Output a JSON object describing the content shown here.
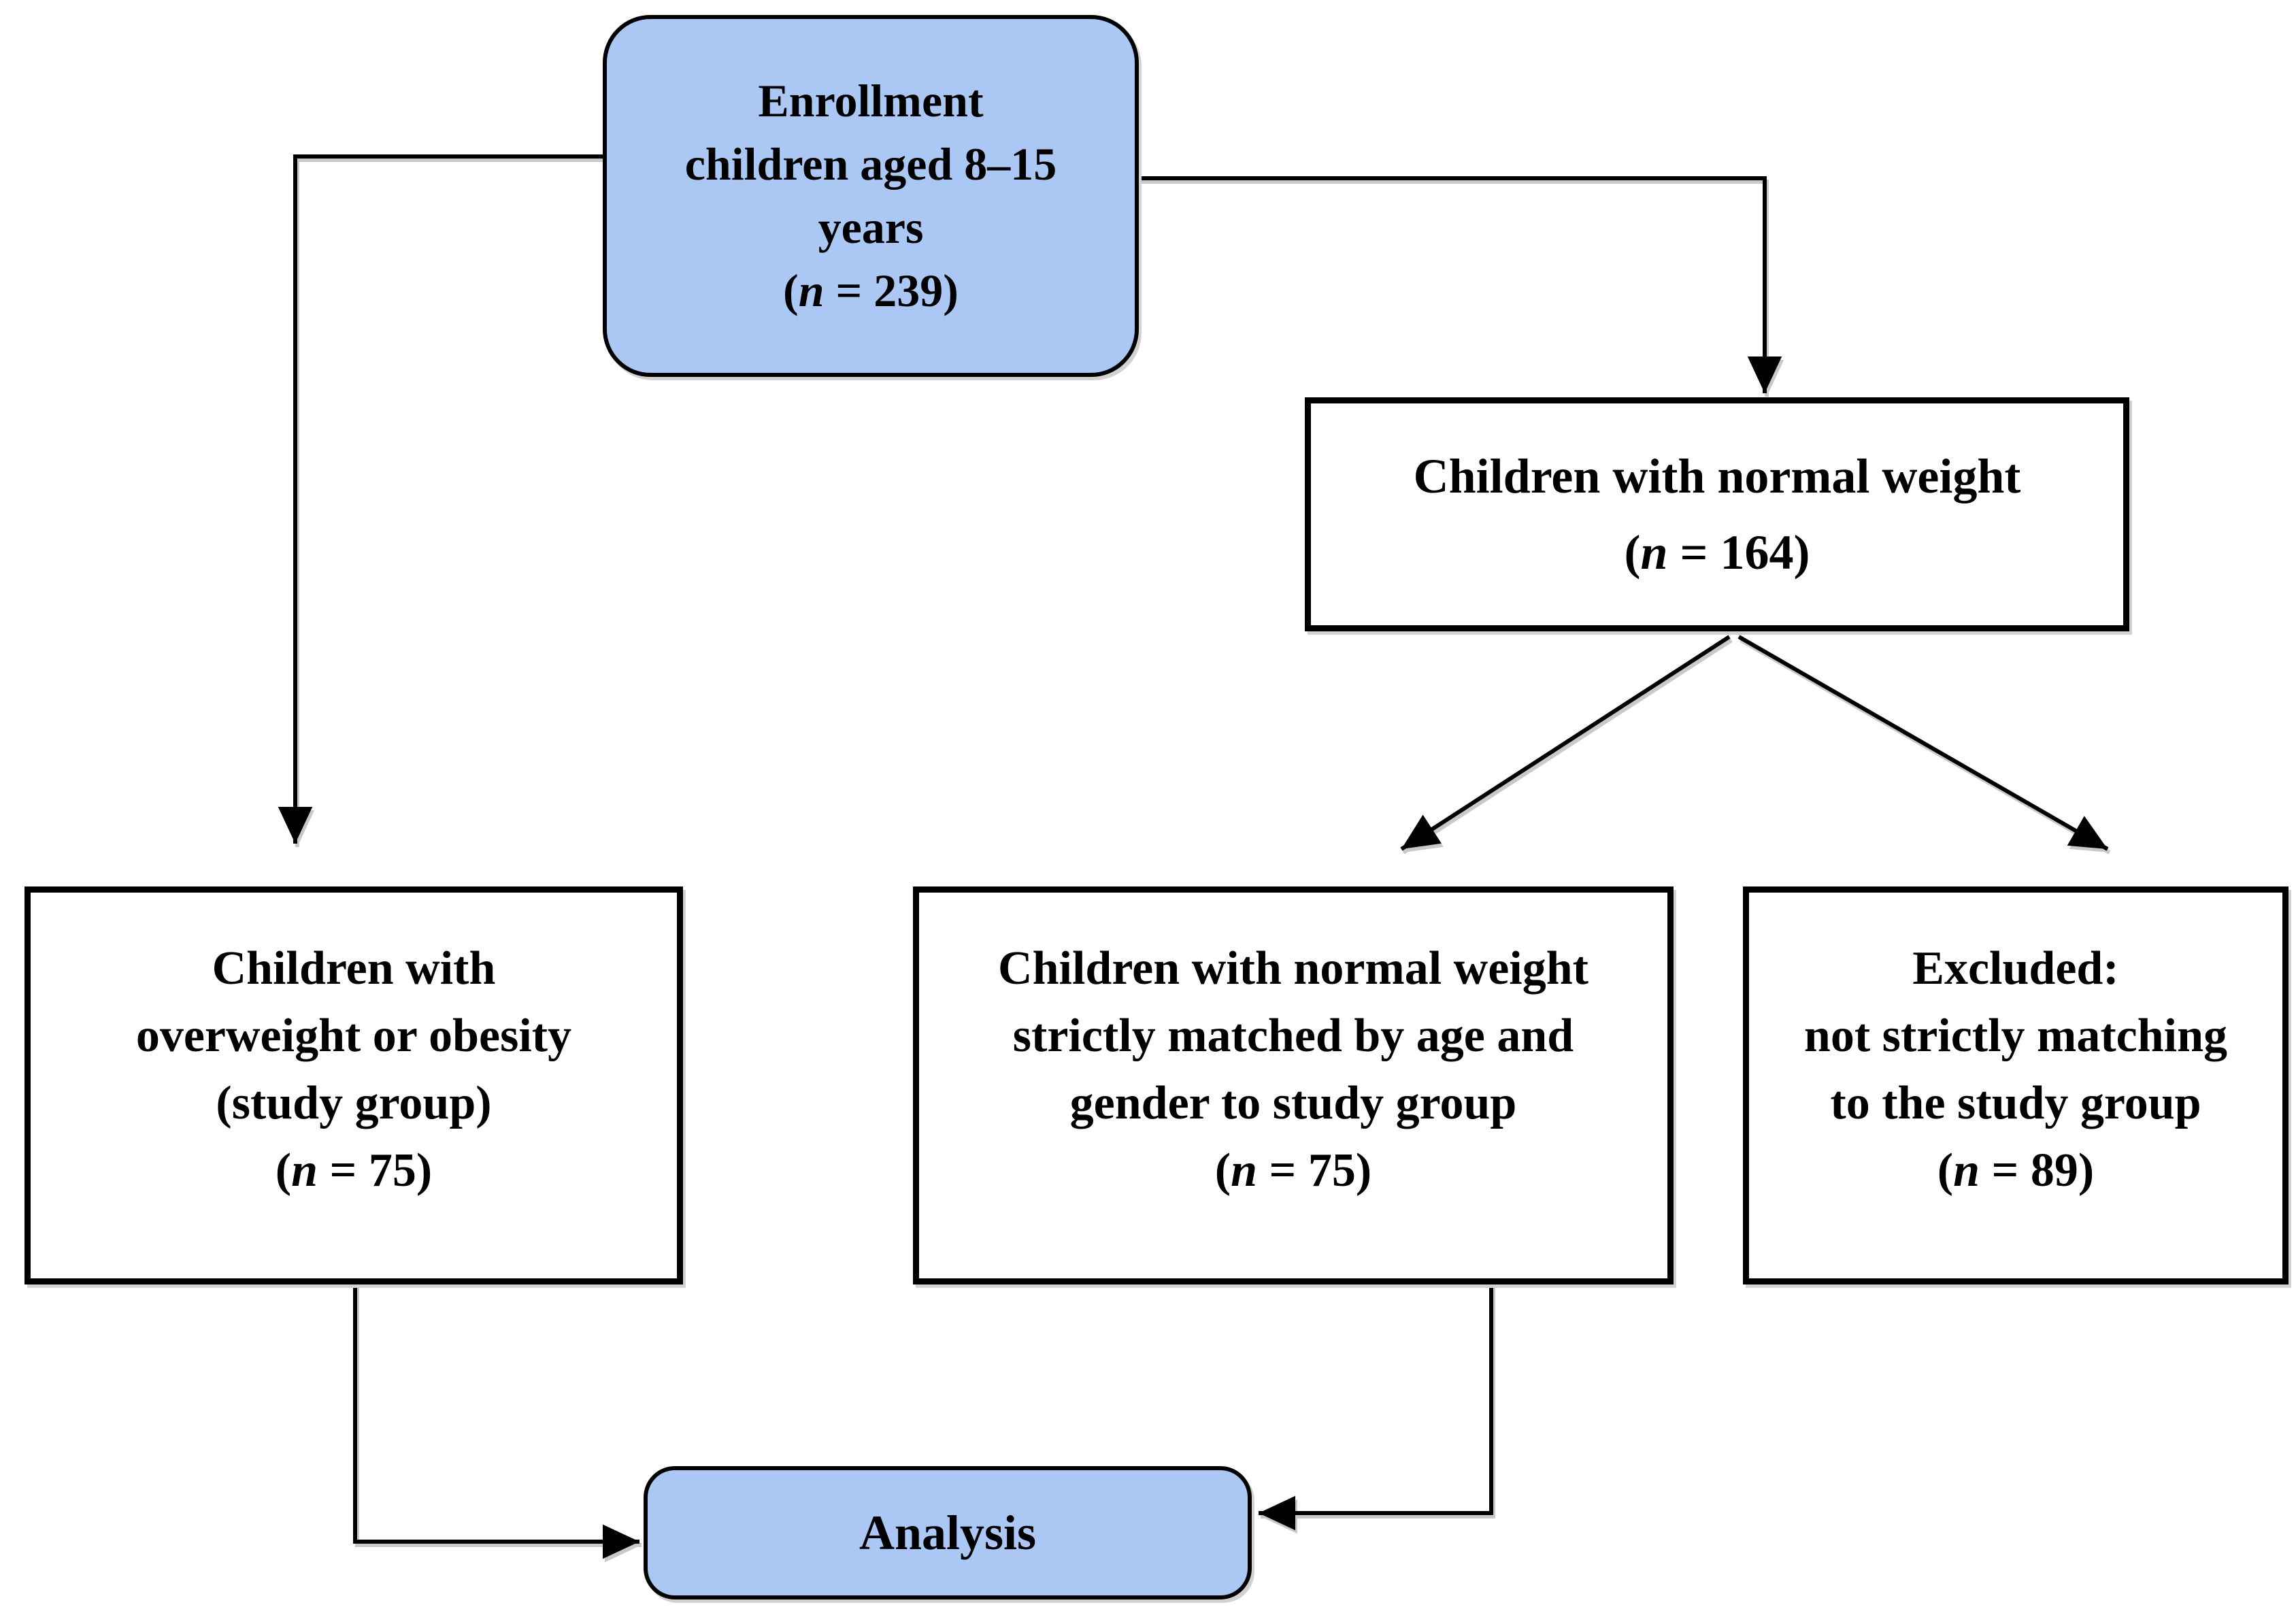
{
  "figure": {
    "type": "flowchart",
    "background": "#ffffff"
  },
  "colors": {
    "terminal_node_fill": "#abc8f4",
    "process_node_fill": "#ffffff",
    "border": "#000000",
    "arrow": "#000000"
  },
  "nodes": {
    "enrollment": {
      "shape": "rounded",
      "lines": [
        "Enrollment",
        "children aged 8–15",
        "years",
        "(n = 239)"
      ]
    },
    "normal_weight": {
      "shape": "rect",
      "lines": [
        "Children with normal weight",
        "(n = 164)"
      ]
    },
    "study_group": {
      "shape": "rect",
      "lines": [
        "Children with",
        "overweight or obesity",
        "(study group)",
        "(n = 75)"
      ]
    },
    "matched_controls": {
      "shape": "rect",
      "lines": [
        "Children with normal weight",
        "strictly matched by age and",
        "gender to study group",
        "(n = 75)"
      ]
    },
    "excluded": {
      "shape": "rect",
      "lines": [
        "Excluded:",
        "not strictly matching",
        "to the study group",
        "(n = 89)"
      ]
    },
    "analysis": {
      "shape": "rounded",
      "lines": [
        "Analysis"
      ]
    }
  },
  "edges": [
    {
      "from": "enrollment",
      "to": "study_group"
    },
    {
      "from": "enrollment",
      "to": "normal_weight"
    },
    {
      "from": "normal_weight",
      "to": "matched_controls"
    },
    {
      "from": "normal_weight",
      "to": "excluded"
    },
    {
      "from": "study_group",
      "to": "analysis"
    },
    {
      "from": "matched_controls",
      "to": "analysis"
    }
  ]
}
